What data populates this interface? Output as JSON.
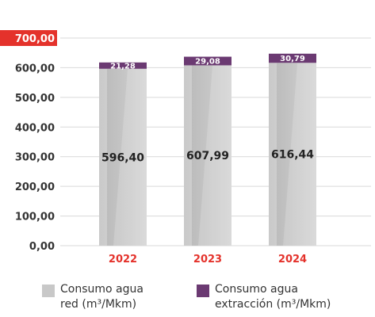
{
  "chart_data": {
    "type": "bar",
    "stacked": true,
    "categories": [
      "2022",
      "2023",
      "2024"
    ],
    "series": [
      {
        "name": "Consumo agua\nred (m³/Mkm)",
        "values": [
          596.4,
          607.99,
          616.44
        ],
        "labels": [
          "596,40",
          "607,99",
          "616,44"
        ],
        "color": "#c8c8c8"
      },
      {
        "name": "Consumo agua\nextracción (m³/Mkm)",
        "values": [
          21.28,
          29.08,
          30.79
        ],
        "labels": [
          "21,28",
          "29,08",
          "30,79"
        ],
        "color": "#6b3a72"
      }
    ],
    "ylim": [
      0,
      700
    ],
    "yticks": [
      0,
      100,
      200,
      300,
      400,
      500,
      600,
      700
    ],
    "ytick_labels": [
      "0,00",
      "100,00",
      "200,00",
      "300,00",
      "400,00",
      "500,00",
      "600,00",
      "700,00"
    ],
    "highlight_tick_color": "#e4322b",
    "category_label_color": "#e4322b",
    "grid": true,
    "legend_position": "bottom"
  }
}
